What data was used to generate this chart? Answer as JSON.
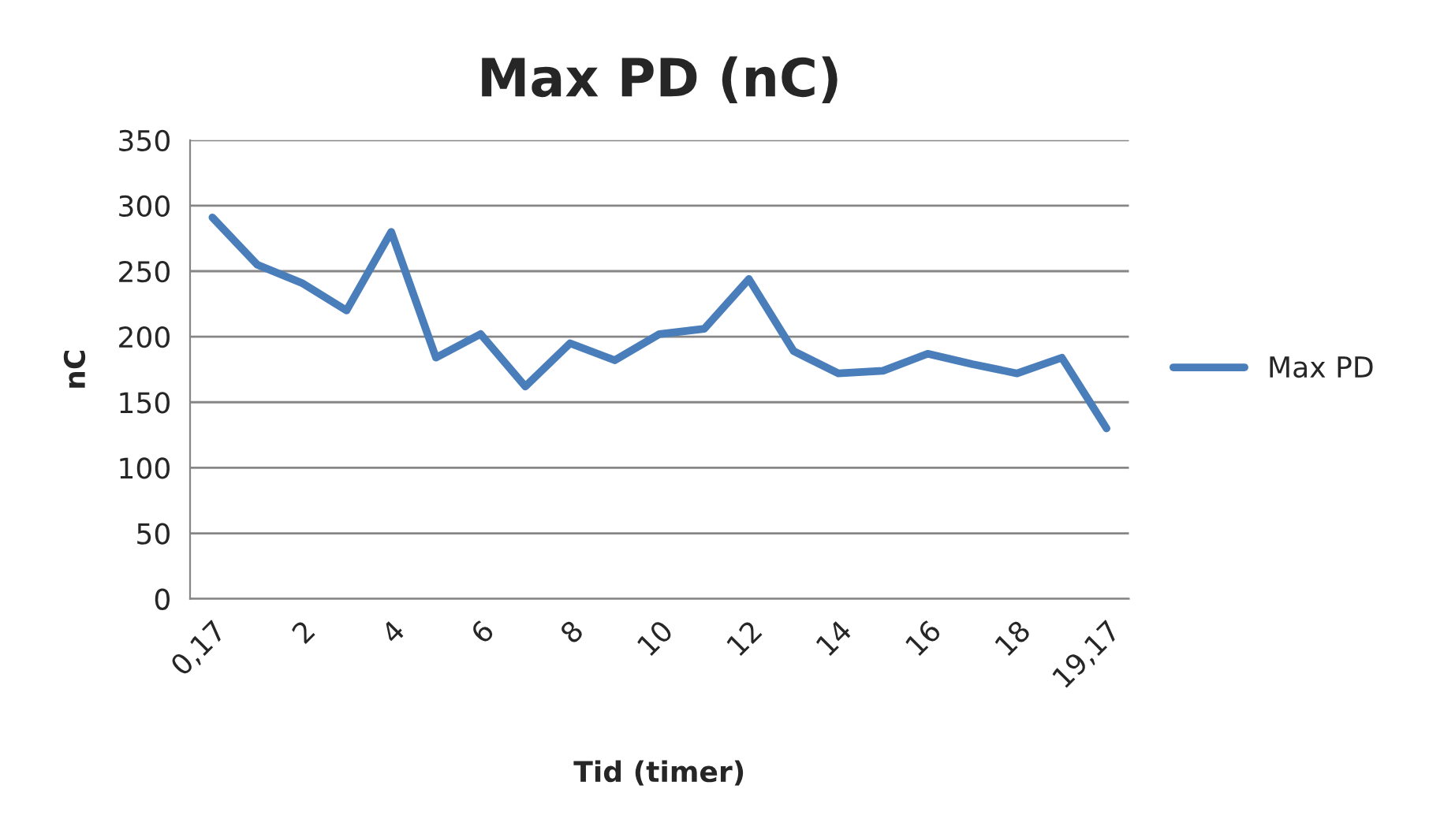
{
  "chart_data": {
    "type": "line",
    "title": "Max PD (nC)",
    "xlabel": "Tid (timer)",
    "ylabel": "nC",
    "categories": [
      "0,17",
      null,
      "2",
      null,
      "4",
      null,
      "6",
      null,
      "8",
      null,
      "10",
      null,
      "12",
      null,
      "14",
      null,
      "16",
      null,
      "18",
      null,
      "19,17"
    ],
    "series": [
      {
        "name": "Max PD",
        "color": "#4a7ebb",
        "values": [
          291,
          255,
          241,
          220,
          280,
          184,
          202,
          162,
          195,
          182,
          202,
          206,
          244,
          189,
          172,
          174,
          187,
          179,
          172,
          184,
          130
        ]
      }
    ],
    "ylim": [
      0,
      350
    ],
    "yticks": [
      0,
      50,
      100,
      150,
      200,
      250,
      300,
      350
    ],
    "grid": "y",
    "legend": "right",
    "marker": "none",
    "line_style": "solid"
  }
}
